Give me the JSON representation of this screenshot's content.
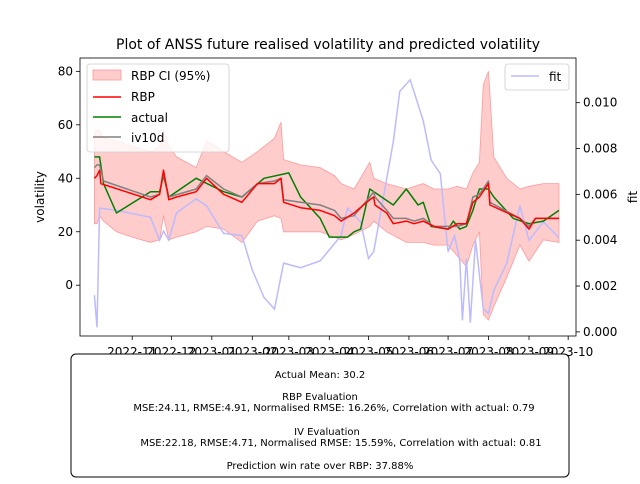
{
  "figure": {
    "title": "Plot of ANSS future realised volatility and predicted volatility",
    "summary_box": {
      "actual_mean": "Actual Mean: 30.2",
      "rbp_heading": "RBP Evaluation",
      "rbp_metrics": "MSE:24.11, RMSE:4.91, Normalised RMSE: 16.26%, Correlation with actual: 0.79",
      "iv_heading": "IV Evaluation",
      "iv_metrics": "MSE:22.18, RMSE:4.71, Normalised RMSE: 15.59%, Correlation with actual: 0.81",
      "win_rate": "Prediction win rate over RBP: 37.88%"
    }
  },
  "chart_data": {
    "type": "line",
    "title": "Plot of ANSS future realised volatility and predicted volatility",
    "ylabel": "volatility",
    "y2label": "fit",
    "ylim": [
      -19,
      85
    ],
    "y2lim": [
      -0.00018,
      0.01195
    ],
    "xlim": [
      "2022-09-22",
      "2023-10-07"
    ],
    "x_ticks": [
      "2022-11",
      "2022-12",
      "2023-01",
      "2023-02",
      "2023-03",
      "2023-04",
      "2023-05",
      "2023-06",
      "2023-07",
      "2023-08",
      "2023-09",
      "2023-10"
    ],
    "y_ticks": [
      0,
      20,
      40,
      60,
      80
    ],
    "y2_ticks": [
      "0.000",
      "0.002",
      "0.004",
      "0.006",
      "0.008",
      "0.010"
    ],
    "legend_left": {
      "placement": "upper left",
      "entries": [
        "RBP CI (95%)",
        "RBP",
        "actual",
        "iv10d"
      ]
    },
    "legend_right": {
      "placement": "upper right",
      "entries": [
        "fit"
      ]
    },
    "colors": {
      "ci": "#ffcccc",
      "ci_edge": "#ff9999",
      "rbp": "#ff0000",
      "actual": "#008000",
      "iv10d": "#808080",
      "fit": "#bbbbff"
    },
    "series": [
      {
        "name": "RBP CI (95%)",
        "type": "band",
        "points": [
          [
            "2022-10-03",
            23,
            57
          ],
          [
            "2022-10-05",
            23,
            58
          ],
          [
            "2022-10-07",
            26,
            58
          ],
          [
            "2022-10-10",
            24,
            55
          ],
          [
            "2022-10-20",
            20,
            54
          ],
          [
            "2022-11-01",
            18,
            52
          ],
          [
            "2022-11-15",
            16,
            50
          ],
          [
            "2022-11-22",
            17,
            52
          ],
          [
            "2022-11-25",
            26,
            58
          ],
          [
            "2022-11-29",
            17,
            52
          ],
          [
            "2022-12-05",
            18,
            48
          ],
          [
            "2022-12-20",
            20,
            44
          ],
          [
            "2022-12-28",
            22,
            54
          ],
          [
            "2023-01-10",
            21,
            50
          ],
          [
            "2023-01-24",
            16,
            46
          ],
          [
            "2023-02-05",
            24,
            50
          ],
          [
            "2023-02-18",
            26,
            55
          ],
          [
            "2023-02-23",
            25,
            61
          ],
          [
            "2023-02-25",
            20,
            47
          ],
          [
            "2023-03-10",
            20,
            45
          ],
          [
            "2023-03-25",
            20,
            44
          ],
          [
            "2023-04-05",
            18,
            41
          ],
          [
            "2023-04-10",
            17,
            38
          ],
          [
            "2023-04-20",
            19,
            36
          ],
          [
            "2023-05-02",
            22,
            46
          ],
          [
            "2023-05-05",
            24,
            40
          ],
          [
            "2023-05-15",
            20,
            38
          ],
          [
            "2023-05-30",
            16,
            36
          ],
          [
            "2023-06-12",
            16,
            38
          ],
          [
            "2023-06-20",
            15,
            36
          ],
          [
            "2023-07-01",
            15,
            36
          ],
          [
            "2023-07-08",
            11,
            37
          ],
          [
            "2023-07-15",
            7,
            36
          ],
          [
            "2023-07-20",
            15,
            42
          ],
          [
            "2023-07-25",
            20,
            46
          ],
          [
            "2023-07-28",
            -11,
            75
          ],
          [
            "2023-08-01",
            -13,
            80
          ],
          [
            "2023-08-05",
            -8,
            48
          ],
          [
            "2023-08-15",
            3,
            40
          ],
          [
            "2023-08-25",
            15,
            36
          ],
          [
            "2023-09-01",
            9,
            37
          ],
          [
            "2023-09-12",
            17,
            38
          ],
          [
            "2023-09-24",
            16,
            38
          ]
        ]
      },
      {
        "name": "RBP",
        "points": [
          [
            "2022-10-03",
            40
          ],
          [
            "2022-10-05",
            41
          ],
          [
            "2022-10-07",
            43
          ],
          [
            "2022-10-08",
            38
          ],
          [
            "2022-11-15",
            32
          ],
          [
            "2022-11-22",
            34
          ],
          [
            "2022-11-25",
            43
          ],
          [
            "2022-11-29",
            32
          ],
          [
            "2022-12-05",
            33
          ],
          [
            "2022-12-20",
            35
          ],
          [
            "2022-12-28",
            40
          ],
          [
            "2023-01-10",
            34
          ],
          [
            "2023-01-24",
            31
          ],
          [
            "2023-02-05",
            38
          ],
          [
            "2023-02-18",
            38
          ],
          [
            "2023-02-23",
            40
          ],
          [
            "2023-02-25",
            31
          ],
          [
            "2023-03-10",
            29
          ],
          [
            "2023-03-25",
            28
          ],
          [
            "2023-04-05",
            26
          ],
          [
            "2023-04-10",
            24
          ],
          [
            "2023-04-20",
            27
          ],
          [
            "2023-05-02",
            32
          ],
          [
            "2023-05-05",
            33
          ],
          [
            "2023-05-06",
            30
          ],
          [
            "2023-05-15",
            27
          ],
          [
            "2023-05-20",
            23
          ],
          [
            "2023-05-30",
            24
          ],
          [
            "2023-06-05",
            23
          ],
          [
            "2023-06-12",
            24
          ],
          [
            "2023-06-20",
            22
          ],
          [
            "2023-07-01",
            21
          ],
          [
            "2023-07-08",
            23
          ],
          [
            "2023-07-15",
            23
          ],
          [
            "2023-07-20",
            31
          ],
          [
            "2023-07-25",
            33
          ],
          [
            "2023-08-01",
            38
          ],
          [
            "2023-08-02",
            30
          ],
          [
            "2023-08-25",
            25
          ],
          [
            "2023-09-01",
            21
          ],
          [
            "2023-09-06",
            25
          ],
          [
            "2023-09-24",
            25
          ]
        ]
      },
      {
        "name": "actual",
        "points": [
          [
            "2022-10-03",
            48
          ],
          [
            "2022-10-07",
            48
          ],
          [
            "2022-10-10",
            38
          ],
          [
            "2022-10-20",
            27
          ],
          [
            "2022-11-15",
            35
          ],
          [
            "2022-11-22",
            35
          ],
          [
            "2022-11-25",
            41
          ],
          [
            "2022-11-29",
            33
          ],
          [
            "2022-12-20",
            40
          ],
          [
            "2023-01-10",
            35
          ],
          [
            "2023-01-24",
            33
          ],
          [
            "2023-02-10",
            40
          ],
          [
            "2023-03-01",
            42
          ],
          [
            "2023-03-10",
            33
          ],
          [
            "2023-03-25",
            25
          ],
          [
            "2023-04-01",
            18
          ],
          [
            "2023-04-15",
            18
          ],
          [
            "2023-04-20",
            20
          ],
          [
            "2023-04-25",
            21
          ],
          [
            "2023-05-02",
            36
          ],
          [
            "2023-05-08",
            34
          ],
          [
            "2023-05-20",
            30
          ],
          [
            "2023-05-30",
            36
          ],
          [
            "2023-06-08",
            30
          ],
          [
            "2023-06-12",
            31
          ],
          [
            "2023-06-18",
            22
          ],
          [
            "2023-07-01",
            21
          ],
          [
            "2023-07-05",
            24
          ],
          [
            "2023-07-10",
            21
          ],
          [
            "2023-07-15",
            22
          ],
          [
            "2023-07-20",
            28
          ],
          [
            "2023-07-25",
            36
          ],
          [
            "2023-08-01",
            36
          ],
          [
            "2023-08-05",
            33
          ],
          [
            "2023-08-20",
            25
          ],
          [
            "2023-09-01",
            23
          ],
          [
            "2023-09-12",
            24
          ],
          [
            "2023-09-24",
            28
          ]
        ]
      },
      {
        "name": "iv10d",
        "points": [
          [
            "2022-10-03",
            44
          ],
          [
            "2022-10-05",
            45
          ],
          [
            "2022-10-07",
            45
          ],
          [
            "2022-10-10",
            39
          ],
          [
            "2022-11-15",
            33
          ],
          [
            "2022-11-22",
            34
          ],
          [
            "2022-11-25",
            42
          ],
          [
            "2022-11-29",
            33
          ],
          [
            "2022-12-20",
            36
          ],
          [
            "2022-12-28",
            41
          ],
          [
            "2023-01-10",
            36
          ],
          [
            "2023-01-24",
            33
          ],
          [
            "2023-02-05",
            38
          ],
          [
            "2023-02-18",
            39
          ],
          [
            "2023-02-23",
            40
          ],
          [
            "2023-02-25",
            32
          ],
          [
            "2023-03-10",
            31
          ],
          [
            "2023-03-25",
            30
          ],
          [
            "2023-04-05",
            28
          ],
          [
            "2023-04-10",
            25
          ],
          [
            "2023-04-20",
            26
          ],
          [
            "2023-05-02",
            33
          ],
          [
            "2023-05-05",
            35
          ],
          [
            "2023-05-06",
            33
          ],
          [
            "2023-05-15",
            28
          ],
          [
            "2023-05-20",
            25
          ],
          [
            "2023-05-30",
            25
          ],
          [
            "2023-06-05",
            24
          ],
          [
            "2023-06-12",
            25
          ],
          [
            "2023-06-20",
            22
          ],
          [
            "2023-07-01",
            22
          ],
          [
            "2023-07-08",
            22
          ],
          [
            "2023-07-15",
            23
          ],
          [
            "2023-07-20",
            33
          ],
          [
            "2023-07-25",
            34
          ],
          [
            "2023-08-01",
            39
          ],
          [
            "2023-08-02",
            31
          ],
          [
            "2023-08-25",
            25
          ],
          [
            "2023-09-01",
            22
          ],
          [
            "2023-09-06",
            25
          ],
          [
            "2023-09-24",
            25
          ]
        ]
      },
      {
        "name": "fit",
        "axis": "right",
        "points": [
          [
            "2022-10-03",
            0.0016
          ],
          [
            "2022-10-05",
            0.0002
          ],
          [
            "2022-10-07",
            0.0054
          ],
          [
            "2022-10-20",
            0.0053
          ],
          [
            "2022-11-15",
            0.005
          ],
          [
            "2022-11-22",
            0.004
          ],
          [
            "2022-11-25",
            0.0044
          ],
          [
            "2022-11-29",
            0.004
          ],
          [
            "2022-12-05",
            0.0052
          ],
          [
            "2022-12-20",
            0.0058
          ],
          [
            "2022-12-28",
            0.0055
          ],
          [
            "2023-01-10",
            0.0043
          ],
          [
            "2023-01-24",
            0.0042
          ],
          [
            "2023-02-01",
            0.0027
          ],
          [
            "2023-02-10",
            0.0015
          ],
          [
            "2023-02-18",
            0.001
          ],
          [
            "2023-02-25",
            0.003
          ],
          [
            "2023-03-10",
            0.0028
          ],
          [
            "2023-03-25",
            0.0031
          ],
          [
            "2023-04-10",
            0.0042
          ],
          [
            "2023-04-15",
            0.0054
          ],
          [
            "2023-04-25",
            0.0048
          ],
          [
            "2023-05-01",
            0.0032
          ],
          [
            "2023-05-05",
            0.0035
          ],
          [
            "2023-05-20",
            0.0083
          ],
          [
            "2023-05-25",
            0.0105
          ],
          [
            "2023-06-02",
            0.011
          ],
          [
            "2023-06-12",
            0.0092
          ],
          [
            "2023-06-18",
            0.0075
          ],
          [
            "2023-06-25",
            0.0069
          ],
          [
            "2023-07-01",
            0.0035
          ],
          [
            "2023-07-06",
            0.0042
          ],
          [
            "2023-07-10",
            0.0031
          ],
          [
            "2023-07-12",
            0.0005
          ],
          [
            "2023-07-15",
            0.0032
          ],
          [
            "2023-07-18",
            0.0004
          ],
          [
            "2023-07-22",
            0.004
          ],
          [
            "2023-07-28",
            0.001
          ],
          [
            "2023-08-01",
            0.0008
          ],
          [
            "2023-08-05",
            0.0018
          ],
          [
            "2023-08-15",
            0.003
          ],
          [
            "2023-08-25",
            0.0055
          ],
          [
            "2023-09-01",
            0.004
          ],
          [
            "2023-09-12",
            0.0048
          ],
          [
            "2023-09-24",
            0.0041
          ]
        ]
      }
    ]
  }
}
